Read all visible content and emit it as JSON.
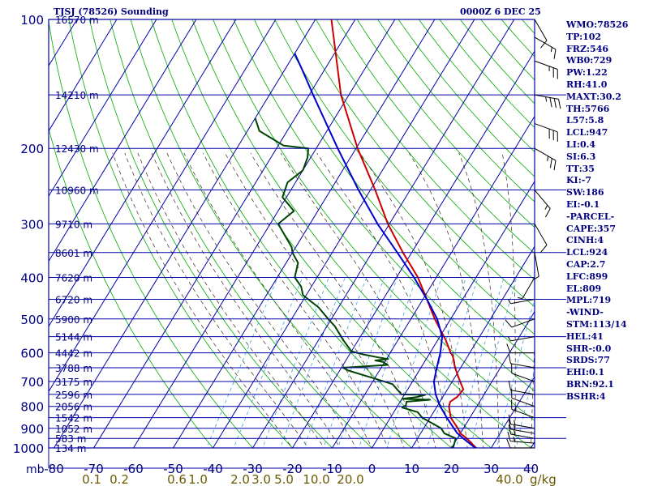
{
  "header": {
    "station": "TJSJ (78526) Sounding",
    "time": "0000Z  6 DEC 25"
  },
  "indices": [
    "WMO:78526",
    "TP:102",
    "FRZ:546",
    "WB0:729",
    "PW:1.22",
    "RH:41.0",
    "MAXT:30.2",
    "TH:5766",
    "L57:5.8",
    "LCL:947",
    "LI:0.4",
    "SI:6.3",
    "TT:35",
    "KI:-7",
    "SW:186",
    "EI:-0.1",
    "-PARCEL-",
    "CAPE:357",
    "CINH:4",
    "LCL:924",
    "CAP:2.7",
    "LFC:899",
    "EL:809",
    "MPL:719",
    "-WIND-",
    "STM:113/14",
    "HEL:41",
    "SHR-:0.0",
    "SRDS:77",
    "EHI:0.1",
    "BRN:92.1",
    "BSHR:4"
  ],
  "colors": {
    "axis": "#000080",
    "grid": "#0000aa",
    "dry_adiabat": "#00aa00",
    "moist_adiabat": "#3a2a1a",
    "mixing_ratio": "#3aa0e0",
    "temperature": "#cc0000",
    "dewpoint": "#004400",
    "parcel": "#0000cc",
    "mixing_label": "#6b5a00"
  },
  "chart_data": {
    "type": "line",
    "title": "",
    "diagram": "skew-T log-P",
    "xlabel": "",
    "ylabel": "mb",
    "xlim": [
      -80,
      40
    ],
    "ylim": [
      1000,
      100
    ],
    "y_scale": "log",
    "grid": true,
    "pressure_ticks": [
      100,
      200,
      300,
      400,
      500,
      600,
      700,
      800,
      900,
      1000
    ],
    "temperature_ticks": [
      -80,
      -70,
      -60,
      -50,
      -40,
      -30,
      -20,
      -10,
      0,
      10,
      20,
      30,
      40
    ],
    "height_labels": [
      {
        "p": 100,
        "label": "16570 m"
      },
      {
        "p": 150,
        "label": "14210 m"
      },
      {
        "p": 200,
        "label": "12430 m"
      },
      {
        "p": 250,
        "label": "10960 m"
      },
      {
        "p": 300,
        "label": "9710 m"
      },
      {
        "p": 350,
        "label": "8601 m"
      },
      {
        "p": 400,
        "label": "7620 m"
      },
      {
        "p": 450,
        "label": "6720 m"
      },
      {
        "p": 500,
        "label": "5900 m"
      },
      {
        "p": 550,
        "label": "5144 m"
      },
      {
        "p": 600,
        "label": "4442 m"
      },
      {
        "p": 650,
        "label": "3788 m"
      },
      {
        "p": 700,
        "label": "3175 m"
      },
      {
        "p": 750,
        "label": "2596 m"
      },
      {
        "p": 800,
        "label": "2056 m"
      },
      {
        "p": 850,
        "label": "1542 m"
      },
      {
        "p": 900,
        "label": "1052 m"
      },
      {
        "p": 950,
        "label": "583 m"
      },
      {
        "p": 1000,
        "label": "134 m"
      }
    ],
    "mixing_ratio_labels": [
      "0.1",
      "0.2",
      "0.6",
      "1.0",
      "2.0",
      "3.0",
      "5.0",
      "10.0",
      "20.0",
      "40.0"
    ],
    "mixing_ratio_unit": "g/kg",
    "series": [
      {
        "name": "",
        "key": "temperature",
        "points": [
          [
            1004,
            26.8
          ],
          [
            1000,
            26.2
          ],
          [
            950,
            22.4
          ],
          [
            925,
            20.0
          ],
          [
            900,
            18.6
          ],
          [
            850,
            15.2
          ],
          [
            800,
            13.0
          ],
          [
            780,
            12.6
          ],
          [
            760,
            13.6
          ],
          [
            730,
            14.0
          ],
          [
            700,
            12.0
          ],
          [
            650,
            8.6
          ],
          [
            610,
            6.2
          ],
          [
            600,
            5.2
          ],
          [
            560,
            2.0
          ],
          [
            500,
            -4.0
          ],
          [
            450,
            -9.0
          ],
          [
            400,
            -14.6
          ],
          [
            350,
            -22.2
          ],
          [
            300,
            -30.4
          ],
          [
            250,
            -38.8
          ],
          [
            200,
            -49.6
          ],
          [
            150,
            -62.0
          ],
          [
            100,
            -76.0
          ]
        ]
      },
      {
        "name": "",
        "key": "dewpoint",
        "points": [
          [
            1004,
            21.0
          ],
          [
            1000,
            20.4
          ],
          [
            950,
            19.6
          ],
          [
            925,
            16.0
          ],
          [
            900,
            14.4
          ],
          [
            850,
            8.0
          ],
          [
            825,
            6.0
          ],
          [
            805,
            1.4
          ],
          [
            795,
            2.0
          ],
          [
            780,
            1.6
          ],
          [
            772,
            7.2
          ],
          [
            768,
            0.0
          ],
          [
            760,
            3.6
          ],
          [
            752,
            5.2
          ],
          [
            750,
            -0.8
          ],
          [
            710,
            -4.6
          ],
          [
            690,
            -9.6
          ],
          [
            660,
            -17.8
          ],
          [
            650,
            -19.6
          ],
          [
            640,
            -8.8
          ],
          [
            630,
            -10.4
          ],
          [
            625,
            -12.6
          ],
          [
            620,
            -9.6
          ],
          [
            615,
            -12.2
          ],
          [
            605,
            -16.6
          ],
          [
            595,
            -20.0
          ],
          [
            580,
            -21.6
          ],
          [
            560,
            -23.8
          ],
          [
            520,
            -28.0
          ],
          [
            500,
            -30.8
          ],
          [
            470,
            -35.0
          ],
          [
            440,
            -40.8
          ],
          [
            420,
            -42.6
          ],
          [
            400,
            -45.6
          ],
          [
            370,
            -47.0
          ],
          [
            350,
            -50.0
          ],
          [
            340,
            -51.0
          ],
          [
            300,
            -58.0
          ],
          [
            280,
            -56.0
          ],
          [
            260,
            -61.0
          ],
          [
            240,
            -62.0
          ],
          [
            225,
            -60.0
          ],
          [
            210,
            -60.8
          ],
          [
            200,
            -62.0
          ],
          [
            197,
            -68.6
          ],
          [
            182,
            -77.0
          ],
          [
            170,
            -80.0
          ]
        ]
      },
      {
        "name": "",
        "key": "parcel",
        "points": [
          [
            1000,
            26.0
          ],
          [
            950,
            21.5
          ],
          [
            924,
            19.2
          ],
          [
            900,
            17.6
          ],
          [
            850,
            14.2
          ],
          [
            800,
            10.8
          ],
          [
            750,
            7.8
          ],
          [
            700,
            5.4
          ],
          [
            650,
            4.0
          ],
          [
            600,
            2.6
          ],
          [
            550,
            0.6
          ],
          [
            500,
            -3.4
          ],
          [
            450,
            -9.0
          ],
          [
            400,
            -15.6
          ],
          [
            350,
            -23.6
          ],
          [
            300,
            -33.0
          ],
          [
            250,
            -43.0
          ],
          [
            200,
            -54.6
          ],
          [
            150,
            -69.0
          ],
          [
            130,
            -76.0
          ],
          [
            120,
            -80.0
          ]
        ]
      }
    ],
    "winds": [
      {
        "p": 1000,
        "dir": 90,
        "spd": 10
      },
      {
        "p": 975,
        "dir": 95,
        "spd": 15
      },
      {
        "p": 950,
        "dir": 100,
        "spd": 15
      },
      {
        "p": 925,
        "dir": 100,
        "spd": 15
      },
      {
        "p": 900,
        "dir": 100,
        "spd": 15
      },
      {
        "p": 850,
        "dir": 110,
        "spd": 15
      },
      {
        "p": 800,
        "dir": 110,
        "spd": 10
      },
      {
        "p": 750,
        "dir": 100,
        "spd": 10
      },
      {
        "p": 700,
        "dir": 110,
        "spd": 10
      },
      {
        "p": 650,
        "dir": 100,
        "spd": 10
      },
      {
        "p": 600,
        "dir": 90,
        "spd": 10
      },
      {
        "p": 550,
        "dir": 80,
        "spd": 5
      },
      {
        "p": 500,
        "dir": 70,
        "spd": 10
      },
      {
        "p": 450,
        "dir": 80,
        "spd": 5
      },
      {
        "p": 400,
        "dir": 30,
        "spd": 5
      },
      {
        "p": 350,
        "dir": 350,
        "spd": 5
      },
      {
        "p": 300,
        "dir": 330,
        "spd": 10
      },
      {
        "p": 250,
        "dir": 320,
        "spd": 15
      },
      {
        "p": 200,
        "dir": 300,
        "spd": 25
      },
      {
        "p": 175,
        "dir": 290,
        "spd": 30
      },
      {
        "p": 150,
        "dir": 280,
        "spd": 35
      },
      {
        "p": 125,
        "dir": 290,
        "spd": 25
      },
      {
        "p": 110,
        "dir": 300,
        "spd": 15
      },
      {
        "p": 100,
        "dir": 330,
        "spd": 10
      }
    ]
  }
}
